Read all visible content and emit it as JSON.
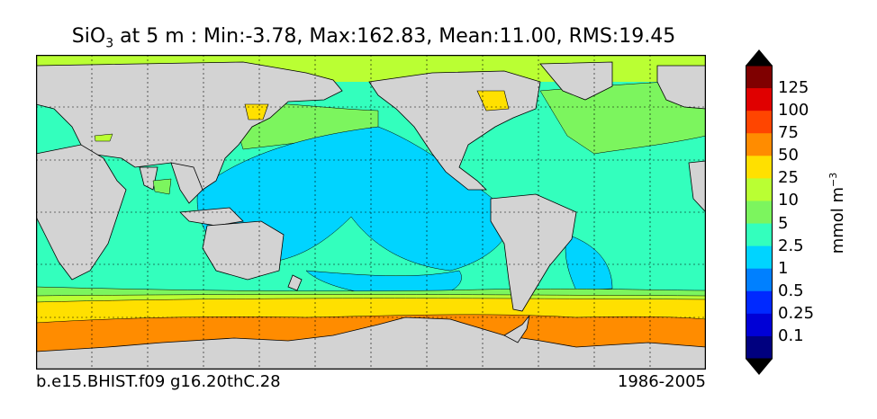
{
  "title": {
    "var": "SiO",
    "sub": "3",
    "rest": " at 5 m : Min:-3.78, Max:162.83, Mean:11.00, RMS:19.45"
  },
  "footer": {
    "case": "b.e15.BHIST.f09 g16.20thC.28",
    "period": "1986-2005"
  },
  "colorbar": {
    "unit_base": "mmol m",
    "unit_exp": "−3",
    "tick_labels": [
      "125",
      "100",
      "75",
      "50",
      "25",
      "10",
      "5",
      "2.5",
      "1",
      "0.5",
      "0.25",
      "0.1"
    ],
    "colors": [
      "#7f0000",
      "#e00000",
      "#ff4500",
      "#ff8c00",
      "#ffe000",
      "#baff33",
      "#7cf55e",
      "#33ffbd",
      "#00d4ff",
      "#0080ff",
      "#0029ff",
      "#0000d6",
      "#00007f"
    ],
    "extend": "both"
  },
  "map_colors": {
    "land": "#d3d3d3",
    "dark_blue": "#00d4ff",
    "aqua": "#33ffbd",
    "light_green": "#7cf55e",
    "yellow_green": "#baff33",
    "yellow": "#ffe000",
    "orange": "#ff8c00"
  }
}
